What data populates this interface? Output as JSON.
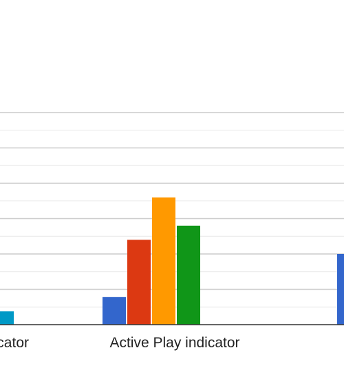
{
  "chart_data": {
    "type": "bar",
    "title": "",
    "xlabel": "",
    "ylabel": "",
    "ylim": [
      0,
      6
    ],
    "grid": true,
    "categories": [
      "…icator",
      "Active Play indicator",
      "…"
    ],
    "series": [
      {
        "color": "#3366cc",
        "values": [
          null,
          0.78,
          2.0
        ]
      },
      {
        "color": "#dc3912",
        "values": [
          null,
          2.4,
          null
        ]
      },
      {
        "color": "#ff9900",
        "values": [
          null,
          3.6,
          null
        ]
      },
      {
        "color": "#109618",
        "values": [
          null,
          2.8,
          null
        ]
      },
      {
        "color": "#0099c6",
        "values": [
          0.38,
          null,
          null
        ]
      }
    ]
  }
}
